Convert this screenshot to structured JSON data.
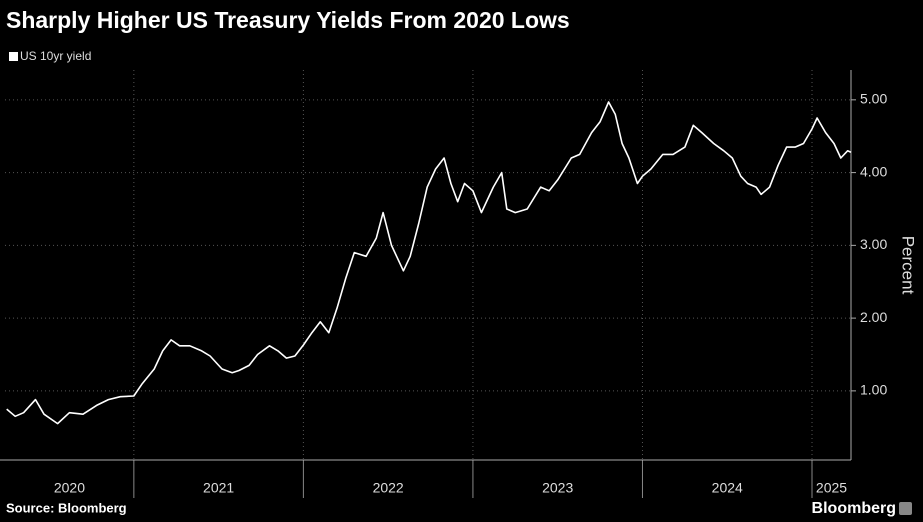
{
  "chart_data": {
    "type": "line",
    "title": "Sharply Higher US Treasury Yields From 2020 Lows",
    "y_label": "Percent",
    "source": "Source: Bloomberg",
    "brand": "Bloomberg",
    "legend_position": "top-left",
    "grid": true,
    "categories": [
      "2020",
      "2021",
      "2022",
      "2023",
      "2024",
      "2025"
    ],
    "xlim": [
      2020.24,
      2025.23
    ],
    "xticks": [
      2021,
      2022,
      2023,
      2024,
      2025
    ],
    "ylim": [
      0.05,
      5.41
    ],
    "yticks": [
      {
        "value": 1,
        "label": "1.00"
      },
      {
        "value": 2,
        "label": "2.00"
      },
      {
        "value": 3,
        "label": "3.00"
      },
      {
        "value": 4,
        "label": "4.00"
      },
      {
        "value": 5,
        "label": "5.00"
      }
    ],
    "series": [
      {
        "name": "US 10yr yield",
        "color": "#ffffff",
        "x": [
          2020.25,
          2020.3,
          2020.35,
          2020.42,
          2020.47,
          2020.55,
          2020.62,
          2020.7,
          2020.78,
          2020.85,
          2020.92,
          2021.0,
          2021.05,
          2021.12,
          2021.17,
          2021.22,
          2021.27,
          2021.33,
          2021.4,
          2021.45,
          2021.52,
          2021.58,
          2021.62,
          2021.68,
          2021.73,
          2021.8,
          2021.85,
          2021.9,
          2021.95,
          2022.0,
          2022.05,
          2022.1,
          2022.15,
          2022.2,
          2022.25,
          2022.3,
          2022.37,
          2022.43,
          2022.47,
          2022.52,
          2022.55,
          2022.59,
          2022.63,
          2022.68,
          2022.73,
          2022.78,
          2022.83,
          2022.87,
          2022.91,
          2022.95,
          2023.0,
          2023.05,
          2023.12,
          2023.17,
          2023.2,
          2023.25,
          2023.32,
          2023.4,
          2023.45,
          2023.5,
          2023.58,
          2023.63,
          2023.7,
          2023.75,
          2023.8,
          2023.84,
          2023.88,
          2023.92,
          2023.97,
          2024.0,
          2024.05,
          2024.12,
          2024.18,
          2024.25,
          2024.3,
          2024.35,
          2024.42,
          2024.48,
          2024.53,
          2024.58,
          2024.62,
          2024.67,
          2024.7,
          2024.75,
          2024.8,
          2024.85,
          2024.9,
          2024.95,
          2025.0,
          2025.03,
          2025.08,
          2025.13,
          2025.17,
          2025.21,
          2025.23
        ],
        "values": [
          0.75,
          0.65,
          0.7,
          0.88,
          0.68,
          0.55,
          0.7,
          0.68,
          0.8,
          0.88,
          0.92,
          0.93,
          1.1,
          1.3,
          1.55,
          1.7,
          1.62,
          1.62,
          1.55,
          1.48,
          1.3,
          1.25,
          1.28,
          1.35,
          1.5,
          1.62,
          1.55,
          1.45,
          1.48,
          1.63,
          1.8,
          1.95,
          1.8,
          2.15,
          2.55,
          2.9,
          2.85,
          3.1,
          3.45,
          3.0,
          2.85,
          2.65,
          2.85,
          3.3,
          3.8,
          4.05,
          4.2,
          3.85,
          3.6,
          3.85,
          3.75,
          3.45,
          3.8,
          4.0,
          3.5,
          3.45,
          3.5,
          3.8,
          3.75,
          3.9,
          4.2,
          4.25,
          4.55,
          4.7,
          4.97,
          4.8,
          4.4,
          4.2,
          3.85,
          3.95,
          4.05,
          4.25,
          4.25,
          4.35,
          4.65,
          4.55,
          4.4,
          4.3,
          4.2,
          3.95,
          3.85,
          3.8,
          3.7,
          3.8,
          4.1,
          4.35,
          4.35,
          4.4,
          4.6,
          4.75,
          4.55,
          4.4,
          4.2,
          4.3,
          4.28
        ]
      }
    ]
  }
}
